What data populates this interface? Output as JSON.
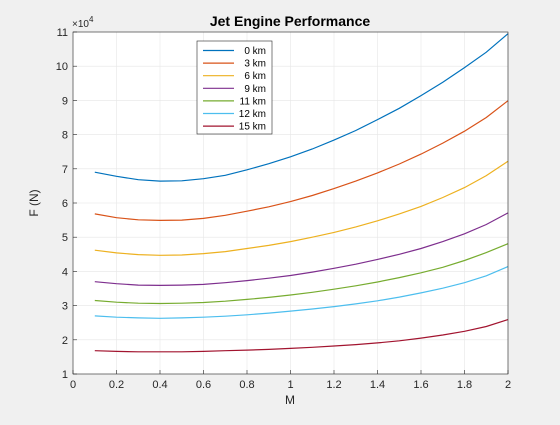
{
  "window": {
    "background": "#f0f0f0"
  },
  "chart_data": {
    "type": "line",
    "title": "Jet Engine Performance",
    "xlabel": "M",
    "ylabel": "F (N)",
    "y_exponent_label": "×10",
    "y_exponent_power": "4",
    "xlim": [
      0,
      2
    ],
    "ylim": [
      10000,
      110000
    ],
    "xticks": [
      0,
      0.2,
      0.4,
      0.6,
      0.8,
      1,
      1.2,
      1.4,
      1.6,
      1.8,
      2
    ],
    "xtick_labels": [
      "0",
      "0.2",
      "0.4",
      "0.6",
      "0.8",
      "1",
      "1.2",
      "1.4",
      "1.6",
      "1.8",
      "2"
    ],
    "yticks": [
      10000,
      20000,
      30000,
      40000,
      50000,
      60000,
      70000,
      80000,
      90000,
      100000,
      110000
    ],
    "ytick_labels": [
      "1",
      "2",
      "3",
      "4",
      "5",
      "6",
      "7",
      "8",
      "9",
      "10",
      "11"
    ],
    "grid": true,
    "legend_position": "top-center",
    "x": [
      0.1,
      0.2,
      0.3,
      0.4,
      0.5,
      0.6,
      0.7,
      0.8,
      0.9,
      1.0,
      1.1,
      1.2,
      1.3,
      1.4,
      1.5,
      1.6,
      1.7,
      1.8,
      1.9,
      2.0
    ],
    "series": [
      {
        "name": "0 km",
        "color": "#0072bd",
        "values": [
          69000,
          67800,
          66800,
          66400,
          66500,
          67100,
          68100,
          69700,
          71500,
          73500,
          75800,
          78400,
          81200,
          84400,
          87700,
          91400,
          95300,
          99600,
          104100,
          109500
        ]
      },
      {
        "name": "3 km",
        "color": "#d95319",
        "values": [
          56800,
          55700,
          55100,
          54900,
          55000,
          55500,
          56400,
          57600,
          58900,
          60400,
          62200,
          64200,
          66400,
          68800,
          71400,
          74300,
          77500,
          81000,
          85000,
          89900
        ]
      },
      {
        "name": "6 km",
        "color": "#edb120",
        "values": [
          46200,
          45400,
          44900,
          44700,
          44800,
          45200,
          45800,
          46700,
          47600,
          48700,
          50000,
          51400,
          53000,
          54800,
          56800,
          59000,
          61600,
          64500,
          68000,
          72200
        ]
      },
      {
        "name": "9 km",
        "color": "#7e2f8e",
        "values": [
          37000,
          36400,
          36000,
          35900,
          36000,
          36200,
          36700,
          37300,
          38000,
          38800,
          39800,
          40900,
          42100,
          43500,
          45000,
          46700,
          48700,
          51000,
          53700,
          57100
        ]
      },
      {
        "name": "11 km",
        "color": "#77ac30",
        "values": [
          31500,
          31000,
          30700,
          30600,
          30700,
          30900,
          31300,
          31800,
          32400,
          33100,
          33900,
          34800,
          35800,
          36900,
          38200,
          39600,
          41200,
          43200,
          45500,
          48100
        ]
      },
      {
        "name": "12 km",
        "color": "#4dbeee",
        "values": [
          27000,
          26600,
          26400,
          26300,
          26400,
          26600,
          26900,
          27300,
          27800,
          28400,
          29000,
          29700,
          30500,
          31400,
          32500,
          33700,
          35100,
          36700,
          38700,
          41400
        ]
      },
      {
        "name": "15 km",
        "color": "#a2142f",
        "values": [
          16800,
          16600,
          16500,
          16500,
          16500,
          16600,
          16800,
          17000,
          17200,
          17500,
          17800,
          18200,
          18600,
          19100,
          19700,
          20500,
          21400,
          22500,
          23900,
          25900
        ]
      }
    ]
  }
}
